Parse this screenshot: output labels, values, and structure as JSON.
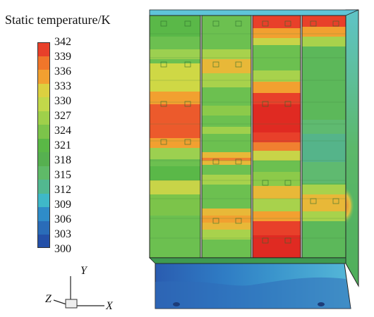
{
  "legend": {
    "title": "Static temperature/K",
    "values": [
      "342",
      "339",
      "336",
      "333",
      "330",
      "327",
      "324",
      "321",
      "318",
      "315",
      "312",
      "309",
      "306",
      "303",
      "300"
    ],
    "colors": [
      "#e8402a",
      "#f0762a",
      "#f2a030",
      "#dcd040",
      "#c2d84a",
      "#9fd04a",
      "#7cc44a",
      "#5ab846",
      "#56b050",
      "#5fba68",
      "#52b890",
      "#3fb8c8",
      "#2f8cc8",
      "#2a6cb8",
      "#2450a8"
    ]
  },
  "axes": {
    "x": "X",
    "y": "Y",
    "z": "Z"
  }
}
